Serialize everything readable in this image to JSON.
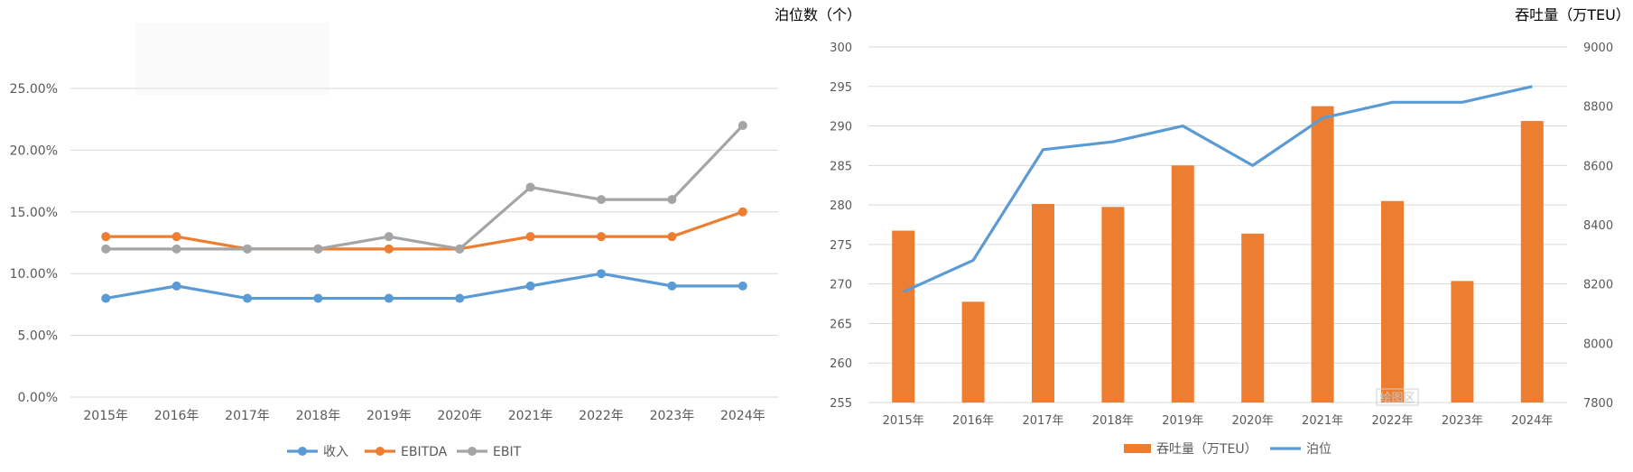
{
  "chart_data": [
    {
      "type": "line",
      "categories": [
        "2015年",
        "2016年",
        "2017年",
        "2018年",
        "2019年",
        "2020年",
        "2021年",
        "2022年",
        "2023年",
        "2024年"
      ],
      "series": [
        {
          "name": "收入",
          "color": "#5B9BD5",
          "values": [
            8,
            9,
            8,
            8,
            8,
            8,
            9,
            10,
            9,
            9
          ]
        },
        {
          "name": "EBITDA",
          "color": "#ED7D31",
          "values": [
            13,
            13,
            12,
            12,
            12,
            12,
            13,
            13,
            13,
            15
          ]
        },
        {
          "name": "EBIT",
          "color": "#A5A5A5",
          "values": [
            12,
            12,
            12,
            12,
            13,
            12,
            17,
            16,
            16,
            22
          ]
        }
      ],
      "ylim": [
        0,
        25
      ],
      "yticks": [
        "0.00%",
        "5.00%",
        "10.00%",
        "15.00%",
        "20.00%",
        "25.00%"
      ],
      "grid": true,
      "legend": "bottom"
    },
    {
      "type": "bar+line",
      "categories": [
        "2015年",
        "2016年",
        "2017年",
        "2018年",
        "2019年",
        "2020年",
        "2021年",
        "2022年",
        "2023年",
        "2024年"
      ],
      "series": [
        {
          "name": "吞吐量（万TEU）",
          "type": "bar",
          "axis": "right",
          "color": "#ED7D31",
          "values": [
            8380,
            8140,
            8470,
            8460,
            8600,
            8370,
            8800,
            8480,
            8210,
            8750
          ]
        },
        {
          "name": "泊位",
          "type": "line",
          "axis": "left",
          "color": "#5B9BD5",
          "values": [
            269,
            273,
            287,
            288,
            290,
            285,
            291,
            293,
            293,
            295
          ]
        }
      ],
      "left_axis": {
        "label": "泊位数（个）",
        "ylim": [
          255,
          300
        ],
        "ticks": [
          "255",
          "260",
          "265",
          "270",
          "275",
          "280",
          "285",
          "290",
          "295",
          "300"
        ]
      },
      "right_axis": {
        "label": "吞吐量（万TEU）",
        "ylim": [
          7800,
          9000
        ],
        "ticks": [
          "7800",
          "8000",
          "8200",
          "8400",
          "8600",
          "8800",
          "9000"
        ]
      },
      "annotation": "绘图区",
      "grid": true,
      "legend": "bottom"
    }
  ]
}
